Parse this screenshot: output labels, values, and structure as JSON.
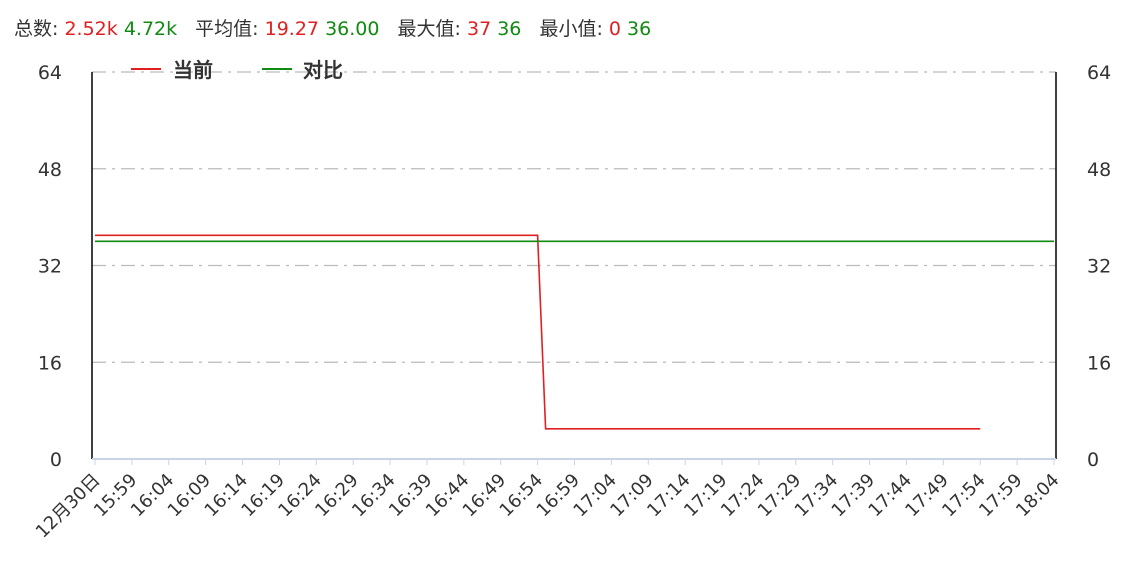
{
  "summary": {
    "total_label": "总数:",
    "total_current": "2.52k",
    "total_compare": "4.72k",
    "avg_label": "平均值:",
    "avg_current": "19.27",
    "avg_compare": "36.00",
    "max_label": "最大值:",
    "max_current": "37",
    "max_compare": "36",
    "min_label": "最小值:",
    "min_current": "0",
    "min_compare": "36"
  },
  "colors": {
    "current": "#e02020",
    "compare": "#108a10",
    "grid": "#bbbbbb",
    "axis": "#000000",
    "xaxis": "#c8d4e8"
  },
  "chart_data": {
    "type": "line",
    "title": "",
    "xlabel": "",
    "ylabel": "",
    "ylim": [
      0,
      64
    ],
    "y_ticks": [
      0,
      16,
      32,
      48,
      64
    ],
    "x_ticks": [
      "12月30日",
      "15:59",
      "16:04",
      "16:09",
      "16:14",
      "16:19",
      "16:24",
      "16:29",
      "16:34",
      "16:39",
      "16:44",
      "16:49",
      "16:54",
      "16:59",
      "17:04",
      "17:09",
      "17:14",
      "17:19",
      "17:24",
      "17:29",
      "17:34",
      "17:39",
      "17:44",
      "17:49",
      "17:54",
      "17:59",
      "18:04"
    ],
    "grid": true,
    "legend_position": "top-left",
    "series": [
      {
        "name": "当前",
        "color": "#e02020",
        "points": [
          [
            "12月30日",
            37
          ],
          [
            "16:54",
            37
          ],
          [
            "16:54",
            5
          ],
          [
            "17:54",
            5
          ]
        ]
      },
      {
        "name": "对比",
        "color": "#108a10",
        "points": [
          [
            "12月30日",
            36
          ],
          [
            "18:04",
            36
          ]
        ]
      }
    ]
  }
}
